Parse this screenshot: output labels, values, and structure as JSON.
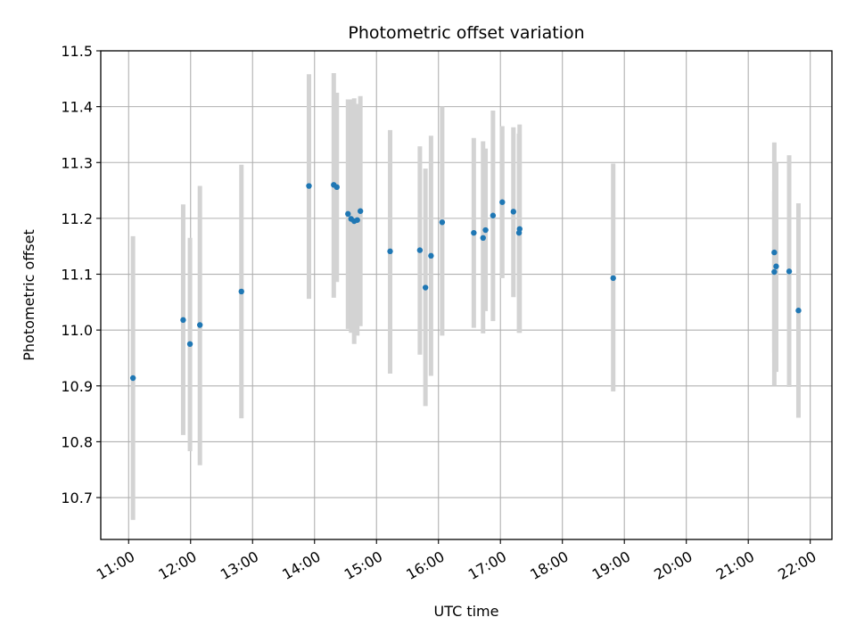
{
  "chart_data": {
    "type": "scatter",
    "title": "Photometric offset variation",
    "xlabel": "UTC time",
    "ylabel": "Photometric offset",
    "x_unit": "hours UTC",
    "xlim": [
      10.55,
      22.35
    ],
    "ylim": [
      10.625,
      11.5
    ],
    "x_ticks": [
      11,
      12,
      13,
      14,
      15,
      16,
      17,
      18,
      19,
      20,
      21,
      22
    ],
    "x_tick_labels": [
      "11:00",
      "12:00",
      "13:00",
      "14:00",
      "15:00",
      "16:00",
      "17:00",
      "18:00",
      "19:00",
      "20:00",
      "21:00",
      "22:00"
    ],
    "y_ticks": [
      10.7,
      10.8,
      10.9,
      11.0,
      11.1,
      11.2,
      11.3,
      11.4,
      11.5
    ],
    "y_tick_labels": [
      "10.7",
      "10.8",
      "10.9",
      "11.0",
      "11.1",
      "11.2",
      "11.3",
      "11.4",
      "11.5"
    ],
    "grid": true,
    "colors": {
      "marker": "#1f77b4",
      "errorbar": "#d3d3d3",
      "grid": "#b0b0b0"
    },
    "points": [
      {
        "x": 11.07,
        "y": 10.914,
        "lo": 10.66,
        "hi": 11.168
      },
      {
        "x": 11.88,
        "y": 11.018,
        "lo": 10.812,
        "hi": 11.225
      },
      {
        "x": 11.99,
        "y": 10.975,
        "lo": 10.783,
        "hi": 11.165
      },
      {
        "x": 12.15,
        "y": 11.009,
        "lo": 10.758,
        "hi": 11.258
      },
      {
        "x": 12.82,
        "y": 11.069,
        "lo": 10.842,
        "hi": 11.296
      },
      {
        "x": 13.91,
        "y": 11.258,
        "lo": 11.056,
        "hi": 11.458
      },
      {
        "x": 14.31,
        "y": 11.26,
        "lo": 11.058,
        "hi": 11.46
      },
      {
        "x": 14.36,
        "y": 11.256,
        "lo": 11.086,
        "hi": 11.425
      },
      {
        "x": 14.54,
        "y": 11.208,
        "lo": 11.002,
        "hi": 11.413
      },
      {
        "x": 14.59,
        "y": 11.199,
        "lo": 10.995,
        "hi": 11.413
      },
      {
        "x": 14.64,
        "y": 11.195,
        "lo": 10.975,
        "hi": 11.415
      },
      {
        "x": 14.69,
        "y": 11.197,
        "lo": 10.99,
        "hi": 11.405
      },
      {
        "x": 14.74,
        "y": 11.213,
        "lo": 11.007,
        "hi": 11.419
      },
      {
        "x": 15.22,
        "y": 11.141,
        "lo": 10.922,
        "hi": 11.358
      },
      {
        "x": 15.7,
        "y": 11.143,
        "lo": 10.956,
        "hi": 11.329
      },
      {
        "x": 15.79,
        "y": 11.076,
        "lo": 10.864,
        "hi": 11.289
      },
      {
        "x": 15.88,
        "y": 11.133,
        "lo": 10.918,
        "hi": 11.348
      },
      {
        "x": 16.06,
        "y": 11.193,
        "lo": 10.99,
        "hi": 11.4
      },
      {
        "x": 16.57,
        "y": 11.174,
        "lo": 11.004,
        "hi": 11.344
      },
      {
        "x": 16.72,
        "y": 11.165,
        "lo": 10.994,
        "hi": 11.338
      },
      {
        "x": 16.76,
        "y": 11.179,
        "lo": 11.034,
        "hi": 11.325
      },
      {
        "x": 16.88,
        "y": 11.205,
        "lo": 11.016,
        "hi": 11.393
      },
      {
        "x": 17.03,
        "y": 11.229,
        "lo": 11.093,
        "hi": 11.365
      },
      {
        "x": 17.21,
        "y": 11.212,
        "lo": 11.059,
        "hi": 11.363
      },
      {
        "x": 17.31,
        "y": 11.181,
        "lo": 10.995,
        "hi": 11.368
      },
      {
        "x": 17.3,
        "y": 11.174,
        "lo": 10.995,
        "hi": 11.352
      },
      {
        "x": 18.82,
        "y": 11.093,
        "lo": 10.89,
        "hi": 11.298
      },
      {
        "x": 21.42,
        "y": 11.139,
        "lo": 10.9,
        "hi": 11.336
      },
      {
        "x": 21.42,
        "y": 11.104,
        "lo": 10.96,
        "hi": 11.248
      },
      {
        "x": 21.45,
        "y": 11.114,
        "lo": 10.925,
        "hi": 11.3
      },
      {
        "x": 21.66,
        "y": 11.105,
        "lo": 10.898,
        "hi": 11.313
      },
      {
        "x": 21.81,
        "y": 11.035,
        "lo": 10.843,
        "hi": 11.227
      }
    ]
  }
}
